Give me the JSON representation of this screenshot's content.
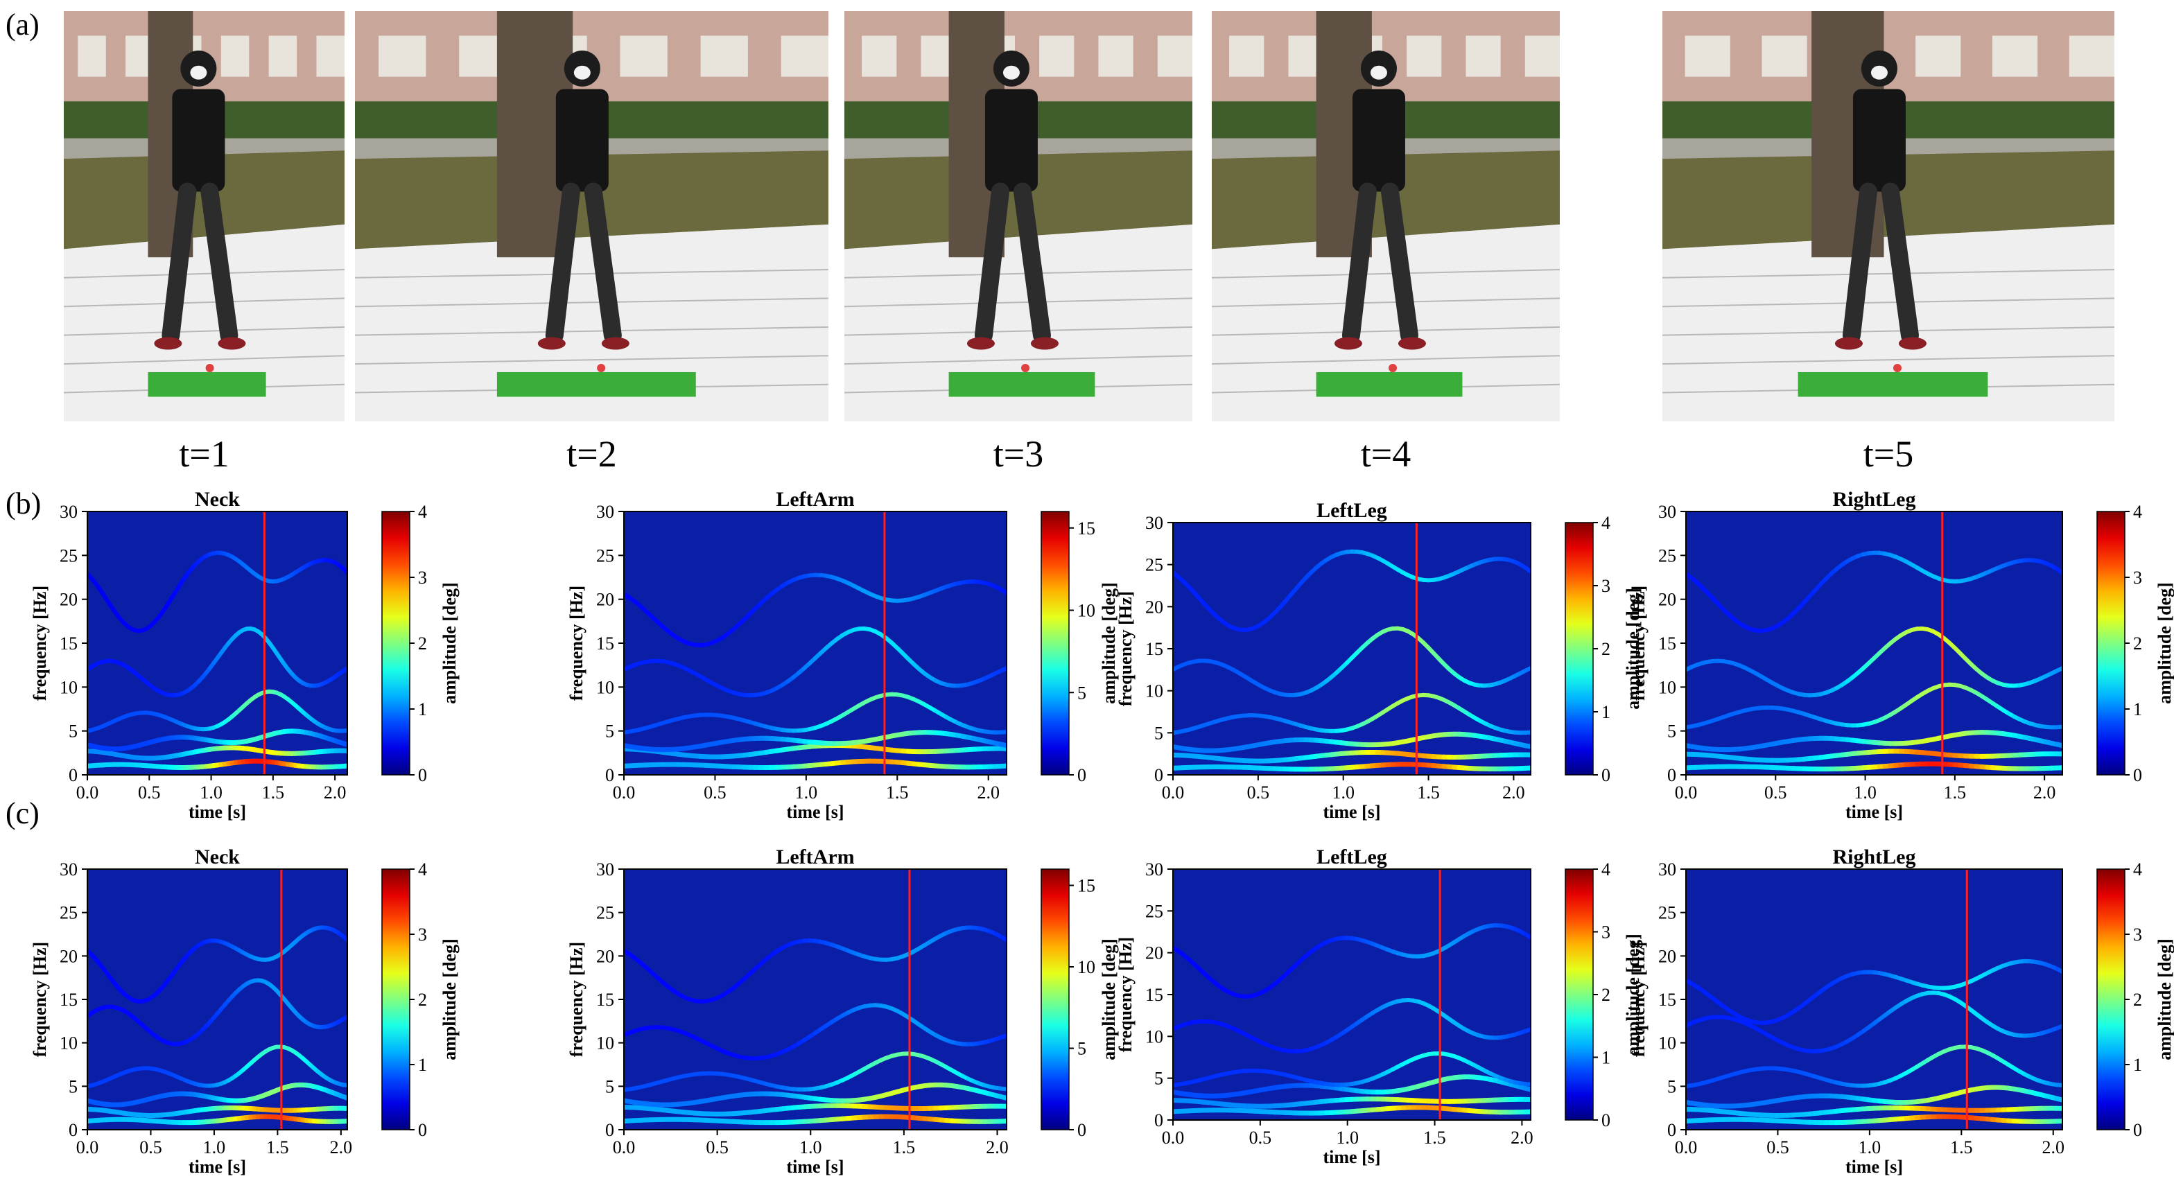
{
  "panels": {
    "a": "(a)",
    "b": "(b)",
    "c": "(c)"
  },
  "photos": [
    {
      "label": "t=1"
    },
    {
      "label": "t=2"
    },
    {
      "label": "t=3"
    },
    {
      "label": "t=4"
    },
    {
      "label": "t=5"
    }
  ],
  "chart_data": [
    {
      "type": "heatmap",
      "row": "b",
      "title": "Neck",
      "xlabel": "time [s]",
      "ylabel": "frequency [Hz]",
      "colorbar_label": "amplitude [deg]",
      "xlim": [
        0,
        2.1
      ],
      "ylim": [
        0,
        30
      ],
      "xticks": [
        "0.0",
        "0.5",
        "1.0",
        "1.5",
        "2.0"
      ],
      "yticks": [
        "0",
        "5",
        "10",
        "15",
        "20",
        "25",
        "30"
      ],
      "cbar_max": 4,
      "cbar_ticks": [
        "0",
        "1",
        "2",
        "3",
        "4"
      ],
      "marker_time": 1.43,
      "curves": [
        {
          "f0": 1.0,
          "amp": 0.95
        },
        {
          "f0": 2.3,
          "amp": 0.7
        },
        {
          "f0": 3.6,
          "amp": 0.5
        },
        {
          "f0": 6.0,
          "amp": 0.55
        },
        {
          "f0": 11.0,
          "amp": 0.35
        },
        {
          "f0": 20.0,
          "amp": 0.25
        }
      ]
    },
    {
      "type": "heatmap",
      "row": "b",
      "title": "LeftArm",
      "xlabel": "time [s]",
      "ylabel": "frequency [Hz]",
      "colorbar_label": "amplitude [deg]",
      "xlim": [
        0,
        2.1
      ],
      "ylim": [
        0,
        30
      ],
      "xticks": [
        "0.0",
        "0.5",
        "1.0",
        "1.5",
        "2.0"
      ],
      "yticks": [
        "0",
        "5",
        "10",
        "15",
        "20",
        "25",
        "30"
      ],
      "cbar_max": 16,
      "cbar_ticks": [
        "0",
        "5",
        "10",
        "15"
      ],
      "marker_time": 1.43,
      "curves": [
        {
          "f0": 1.0,
          "amp": 0.8
        },
        {
          "f0": 2.5,
          "amp": 0.75
        },
        {
          "f0": 3.5,
          "amp": 0.6
        },
        {
          "f0": 5.8,
          "amp": 0.55
        },
        {
          "f0": 11.0,
          "amp": 0.4
        },
        {
          "f0": 18.0,
          "amp": 0.3
        }
      ]
    },
    {
      "type": "heatmap",
      "row": "b",
      "title": "LeftLeg",
      "xlabel": "time [s]",
      "ylabel": "frequency [Hz]",
      "colorbar_label": "amplitude [deg]",
      "xlim": [
        0,
        2.1
      ],
      "ylim": [
        0,
        30
      ],
      "xticks": [
        "0.0",
        "0.5",
        "1.0",
        "1.5",
        "2.0"
      ],
      "yticks": [
        "0",
        "5",
        "10",
        "15",
        "20",
        "25",
        "30"
      ],
      "cbar_max": 4,
      "cbar_ticks": [
        "0",
        "1",
        "2",
        "3",
        "4"
      ],
      "marker_time": 1.43,
      "curves": [
        {
          "f0": 0.8,
          "amp": 0.9
        },
        {
          "f0": 2.0,
          "amp": 0.8
        },
        {
          "f0": 3.5,
          "amp": 0.7
        },
        {
          "f0": 6.0,
          "amp": 0.65
        },
        {
          "f0": 11.5,
          "amp": 0.6
        },
        {
          "f0": 21.0,
          "amp": 0.4
        }
      ]
    },
    {
      "type": "heatmap",
      "row": "b",
      "title": "RightLeg",
      "xlabel": "time [s]",
      "ylabel": "frequency [Hz]",
      "colorbar_label": "amplitude [deg]",
      "xlim": [
        0,
        2.1
      ],
      "ylim": [
        0,
        30
      ],
      "xticks": [
        "0.0",
        "0.5",
        "1.0",
        "1.5",
        "2.0"
      ],
      "yticks": [
        "0",
        "5",
        "10",
        "15",
        "20",
        "25",
        "30"
      ],
      "cbar_max": 4,
      "cbar_ticks": [
        "0",
        "1",
        "2",
        "3",
        "4"
      ],
      "marker_time": 1.43,
      "curves": [
        {
          "f0": 0.8,
          "amp": 0.95
        },
        {
          "f0": 2.0,
          "amp": 0.85
        },
        {
          "f0": 3.5,
          "amp": 0.7
        },
        {
          "f0": 6.5,
          "amp": 0.65
        },
        {
          "f0": 11.0,
          "amp": 0.7
        },
        {
          "f0": 20.0,
          "amp": 0.35
        }
      ]
    },
    {
      "type": "heatmap",
      "row": "c",
      "title": "Neck",
      "xlabel": "time [s]",
      "ylabel": "frequency [Hz]",
      "colorbar_label": "amplitude [deg]",
      "xlim": [
        0,
        2.05
      ],
      "ylim": [
        0,
        30
      ],
      "xticks": [
        "0.0",
        "0.5",
        "1.0",
        "1.5",
        "2.0"
      ],
      "yticks": [
        "0",
        "5",
        "10",
        "15",
        "20",
        "25",
        "30"
      ],
      "cbar_max": 4,
      "cbar_ticks": [
        "0",
        "1",
        "2",
        "3",
        "4"
      ],
      "marker_time": 1.53,
      "curves": [
        {
          "f0": 1.0,
          "amp": 0.9
        },
        {
          "f0": 2.0,
          "amp": 0.8
        },
        {
          "f0": 3.5,
          "amp": 0.6
        },
        {
          "f0": 6.0,
          "amp": 0.5
        },
        {
          "f0": 12.0,
          "amp": 0.3
        },
        {
          "f0": 18.0,
          "amp": 0.3
        }
      ]
    },
    {
      "type": "heatmap",
      "row": "c",
      "title": "LeftArm",
      "xlabel": "time [s]",
      "ylabel": "frequency [Hz]",
      "colorbar_label": "amplitude [deg]",
      "xlim": [
        0,
        2.05
      ],
      "ylim": [
        0,
        30
      ],
      "xticks": [
        "0.0",
        "0.5",
        "1.0",
        "1.5",
        "2.0"
      ],
      "yticks": [
        "0",
        "5",
        "10",
        "15",
        "20",
        "25",
        "30"
      ],
      "cbar_max": 16,
      "cbar_ticks": [
        "0",
        "5",
        "10",
        "15"
      ],
      "marker_time": 1.53,
      "curves": [
        {
          "f0": 1.0,
          "amp": 0.85
        },
        {
          "f0": 2.2,
          "amp": 0.8
        },
        {
          "f0": 3.5,
          "amp": 0.7
        },
        {
          "f0": 5.5,
          "amp": 0.55
        },
        {
          "f0": 10.0,
          "amp": 0.3
        },
        {
          "f0": 18.0,
          "amp": 0.3
        }
      ]
    },
    {
      "type": "heatmap",
      "row": "c",
      "title": "LeftLeg",
      "xlabel": "time [s]",
      "ylabel": "frequency [Hz]",
      "colorbar_label": "amplitude [deg]",
      "xlim": [
        0,
        2.05
      ],
      "ylim": [
        0,
        30
      ],
      "xticks": [
        "0.0",
        "0.5",
        "1.0",
        "1.5",
        "2.0"
      ],
      "yticks": [
        "0",
        "5",
        "10",
        "15",
        "20",
        "25",
        "30"
      ],
      "cbar_max": 4,
      "cbar_ticks": [
        "0",
        "1",
        "2",
        "3",
        "4"
      ],
      "marker_time": 1.53,
      "curves": [
        {
          "f0": 1.0,
          "amp": 0.8
        },
        {
          "f0": 2.0,
          "amp": 0.7
        },
        {
          "f0": 3.5,
          "amp": 0.55
        },
        {
          "f0": 5.0,
          "amp": 0.45
        },
        {
          "f0": 10.0,
          "amp": 0.35
        },
        {
          "f0": 18.0,
          "amp": 0.3
        }
      ]
    },
    {
      "type": "heatmap",
      "row": "c",
      "title": "RightLeg",
      "xlabel": "time [s]",
      "ylabel": "frequency [Hz]",
      "colorbar_label": "amplitude [deg]",
      "xlim": [
        0,
        2.05
      ],
      "ylim": [
        0,
        30
      ],
      "xticks": [
        "0.0",
        "0.5",
        "1.0",
        "1.5",
        "2.0"
      ],
      "yticks": [
        "0",
        "5",
        "10",
        "15",
        "20",
        "25",
        "30"
      ],
      "cbar_max": 4,
      "cbar_ticks": [
        "0",
        "1",
        "2",
        "3",
        "4"
      ],
      "marker_time": 1.53,
      "curves": [
        {
          "f0": 1.0,
          "amp": 0.9
        },
        {
          "f0": 2.0,
          "amp": 0.85
        },
        {
          "f0": 3.3,
          "amp": 0.7
        },
        {
          "f0": 6.0,
          "amp": 0.55
        },
        {
          "f0": 11.0,
          "amp": 0.4
        },
        {
          "f0": 15.0,
          "amp": 0.4
        }
      ]
    }
  ]
}
